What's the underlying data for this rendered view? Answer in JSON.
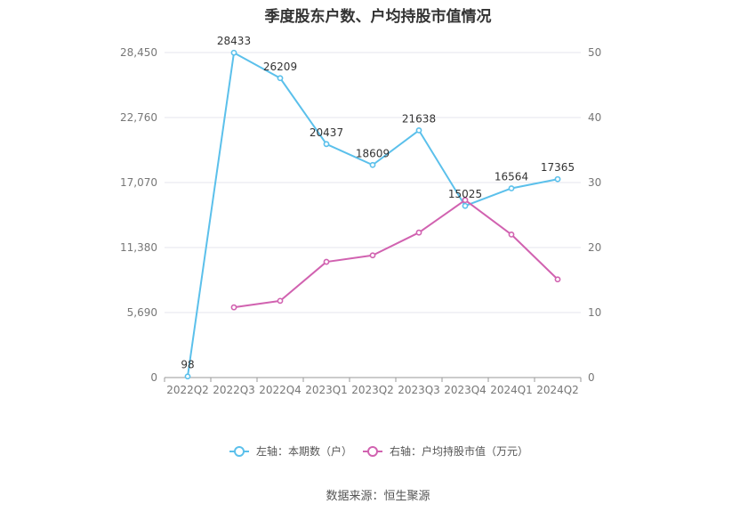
{
  "title": "季度股东户数、户均持股市值情况",
  "source": "数据来源：恒生聚源",
  "chart_data": {
    "type": "line",
    "categories": [
      "2022Q2",
      "2022Q3",
      "2022Q4",
      "2023Q1",
      "2023Q2",
      "2023Q3",
      "2023Q4",
      "2024Q1",
      "2024Q2"
    ],
    "left_axis": {
      "ticks": [
        "0",
        "5,690",
        "11,380",
        "17,070",
        "22,760",
        "28,450"
      ],
      "tick_values": [
        0,
        5690,
        11380,
        17070,
        22760,
        28450
      ],
      "ylim": [
        0,
        28450
      ]
    },
    "right_axis": {
      "ticks": [
        "0",
        "10",
        "20",
        "30",
        "40",
        "50"
      ],
      "tick_values": [
        0,
        10,
        20,
        30,
        40,
        50
      ],
      "ylim": [
        0,
        50
      ]
    },
    "series": [
      {
        "name": "左轴：本期数（户）",
        "axis": "left",
        "color": "#5bc0eb",
        "values": [
          98,
          28433,
          26209,
          20437,
          18609,
          21638,
          15025,
          16564,
          17365
        ],
        "labels": [
          "98",
          "28433",
          "26209",
          "20437",
          "18609",
          "21638",
          "15025",
          "16564",
          "17365"
        ]
      },
      {
        "name": "右轴：户均持股市值（万元）",
        "axis": "right",
        "color": "#d162b0",
        "values": [
          null,
          10.8,
          11.8,
          17.8,
          18.8,
          22.3,
          27.3,
          22.0,
          15.1
        ]
      }
    ],
    "grid": true,
    "legend": "bottom"
  }
}
